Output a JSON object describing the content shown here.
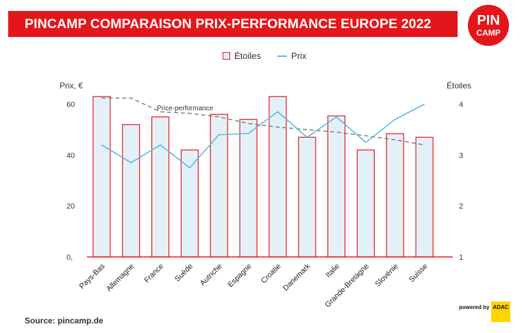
{
  "header": {
    "title": "PINCAMP COMPARAISON PRIX-PERFORMANCE EUROPE 2022"
  },
  "logo": {
    "line1": "PIN",
    "line2": "CAMP",
    "color": "#e3171b"
  },
  "legend": {
    "bar_label": "Étoiles",
    "line_label": "Prix"
  },
  "footer": {
    "source": "Source: pincamp.de",
    "powered_by": "powered by",
    "adac": "ADAC"
  },
  "colors": {
    "accent": "#e3171b",
    "bar_fill": "#e3f0f8",
    "line": "#5ab8dc",
    "trend": "#777777"
  },
  "chart_data": {
    "type": "bar",
    "categories": [
      "Pays-Bas",
      "Allemagne",
      "France",
      "Suède",
      "Autriche",
      "Espagne",
      "Croatie",
      "Danemark",
      "Italie",
      "Grande-Bretagne",
      "Slovénie",
      "Suisse"
    ],
    "left_axis": {
      "label": "Prix, €",
      "ticks": [
        "0,",
        "20",
        "40",
        "60"
      ],
      "ylim": [
        0,
        62
      ]
    },
    "right_axis": {
      "label": "Étoiles",
      "ticks": [
        "1",
        "2",
        "3",
        "4"
      ],
      "ylim": [
        1,
        4.05
      ]
    },
    "series": [
      {
        "name": "Étoiles",
        "type": "bar",
        "axis": "right",
        "values": [
          4.15,
          3.6,
          3.75,
          3.1,
          3.8,
          3.7,
          4.15,
          3.35,
          3.77,
          3.1,
          3.42,
          3.35
        ]
      },
      {
        "name": "Prix",
        "type": "line",
        "axis": "left",
        "values": [
          44,
          37,
          44,
          35,
          48,
          48.5,
          57,
          47,
          55,
          45,
          54,
          60
        ]
      },
      {
        "name": "Price-performance",
        "type": "dashed-line",
        "axis": "right",
        "values": [
          4.12,
          4.12,
          3.85,
          3.82,
          3.75,
          3.62,
          3.55,
          3.5,
          3.45,
          3.38,
          3.3,
          3.2
        ]
      }
    ],
    "annotations": [
      "Price-performance"
    ],
    "grid": false
  }
}
